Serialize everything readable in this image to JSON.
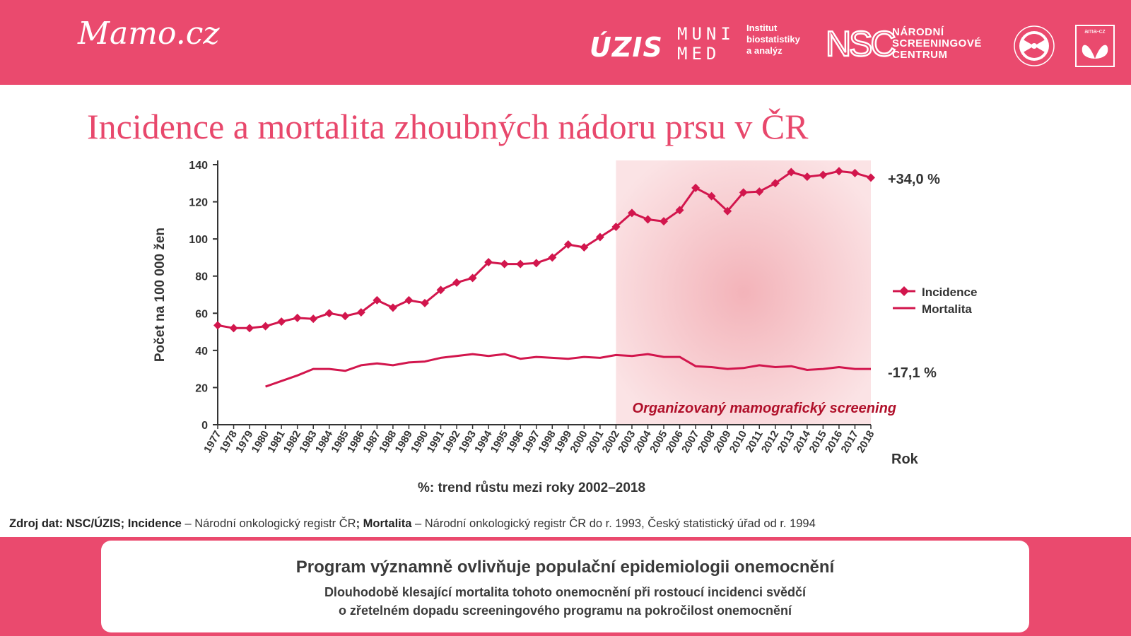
{
  "header": {
    "logo_mamo": "Mamo.cz",
    "logo_uzis": "ÚZIS",
    "muni_line1": "MUNI",
    "muni_line2": "MED",
    "muni_institute": [
      "Institut",
      "biostatistiky",
      "a analýz"
    ],
    "nsc_mark": "NSC",
    "nsc_text": [
      "NÁRODNÍ",
      "SCREENINGOVÉ",
      "CENTRUM"
    ],
    "ama_text": "ama-cz"
  },
  "title": "Incidence a mortalita zhoubných nádoru prsu v ČR",
  "chart_data": {
    "type": "line",
    "x": [
      1977,
      1978,
      1979,
      1980,
      1981,
      1982,
      1983,
      1984,
      1985,
      1986,
      1987,
      1988,
      1989,
      1990,
      1991,
      1992,
      1993,
      1994,
      1995,
      1996,
      1997,
      1998,
      1999,
      2000,
      2001,
      2002,
      2003,
      2004,
      2005,
      2006,
      2007,
      2008,
      2009,
      2010,
      2011,
      2012,
      2013,
      2014,
      2015,
      2016,
      2017,
      2018
    ],
    "series": [
      {
        "name": "Incidence",
        "color": "#d2164d",
        "marker": "diamond",
        "values": [
          53.5,
          52,
          52,
          53,
          55.5,
          57.5,
          57,
          60,
          58.5,
          60.5,
          67,
          63,
          67,
          65.5,
          72.5,
          76.5,
          79,
          87.5,
          86.5,
          86.5,
          87,
          90,
          97,
          95.5,
          101,
          106.5,
          114,
          110.5,
          109.5,
          115.5,
          127.5,
          123,
          115,
          125,
          125.5,
          130,
          136,
          133.5,
          134.5,
          136.5,
          135.5,
          133
        ]
      },
      {
        "name": "Mortalita",
        "color": "#d2164d",
        "marker": "none",
        "values": [
          null,
          null,
          null,
          20.5,
          23.5,
          26.5,
          30,
          30,
          29,
          32,
          33,
          32,
          33.5,
          34,
          36,
          37,
          38,
          37,
          38,
          35.5,
          36.5,
          36,
          35.5,
          36.5,
          36,
          37.5,
          37,
          38,
          36.5,
          36.5,
          31.5,
          31,
          30,
          30.5,
          32,
          31,
          31.5,
          29.5,
          30,
          31,
          30,
          30
        ]
      }
    ],
    "ylabel": "Počet  na 100 000 žen",
    "xlabel": "Rok",
    "ylim": [
      0,
      140
    ],
    "yticks": [
      0,
      20,
      40,
      60,
      80,
      100,
      120,
      140
    ],
    "grid": false,
    "legend": "right",
    "shaded_region": {
      "from": 2002,
      "to": 2018,
      "label": "Organizovaný mamografický screening",
      "color": "#f6c4c8"
    },
    "annotations": [
      "+34,0 %",
      "-17,1 %"
    ],
    "subtitle_below": "%: trend růstu mezi roky 2002–2018"
  },
  "source": {
    "label1": "Zdroj dat: NSC/ÚZIS; ",
    "label2": "Incidence",
    "text1": " – Národní onkologický registr ČR",
    "sep": "; ",
    "label3": "Mortalita",
    "text2": " – Národní onkologický registr ČR do r. 1993, Český statistický úřad od r. 1994"
  },
  "message": {
    "title": "Program významně ovlivňuje populační epidemiologii onemocnění",
    "line1": "Dlouhodobě klesající mortalita tohoto onemocnění při rostoucí incidenci svědčí",
    "line2": "o zřetelném dopadu screeningového programu na pokročilost onemocnění"
  }
}
